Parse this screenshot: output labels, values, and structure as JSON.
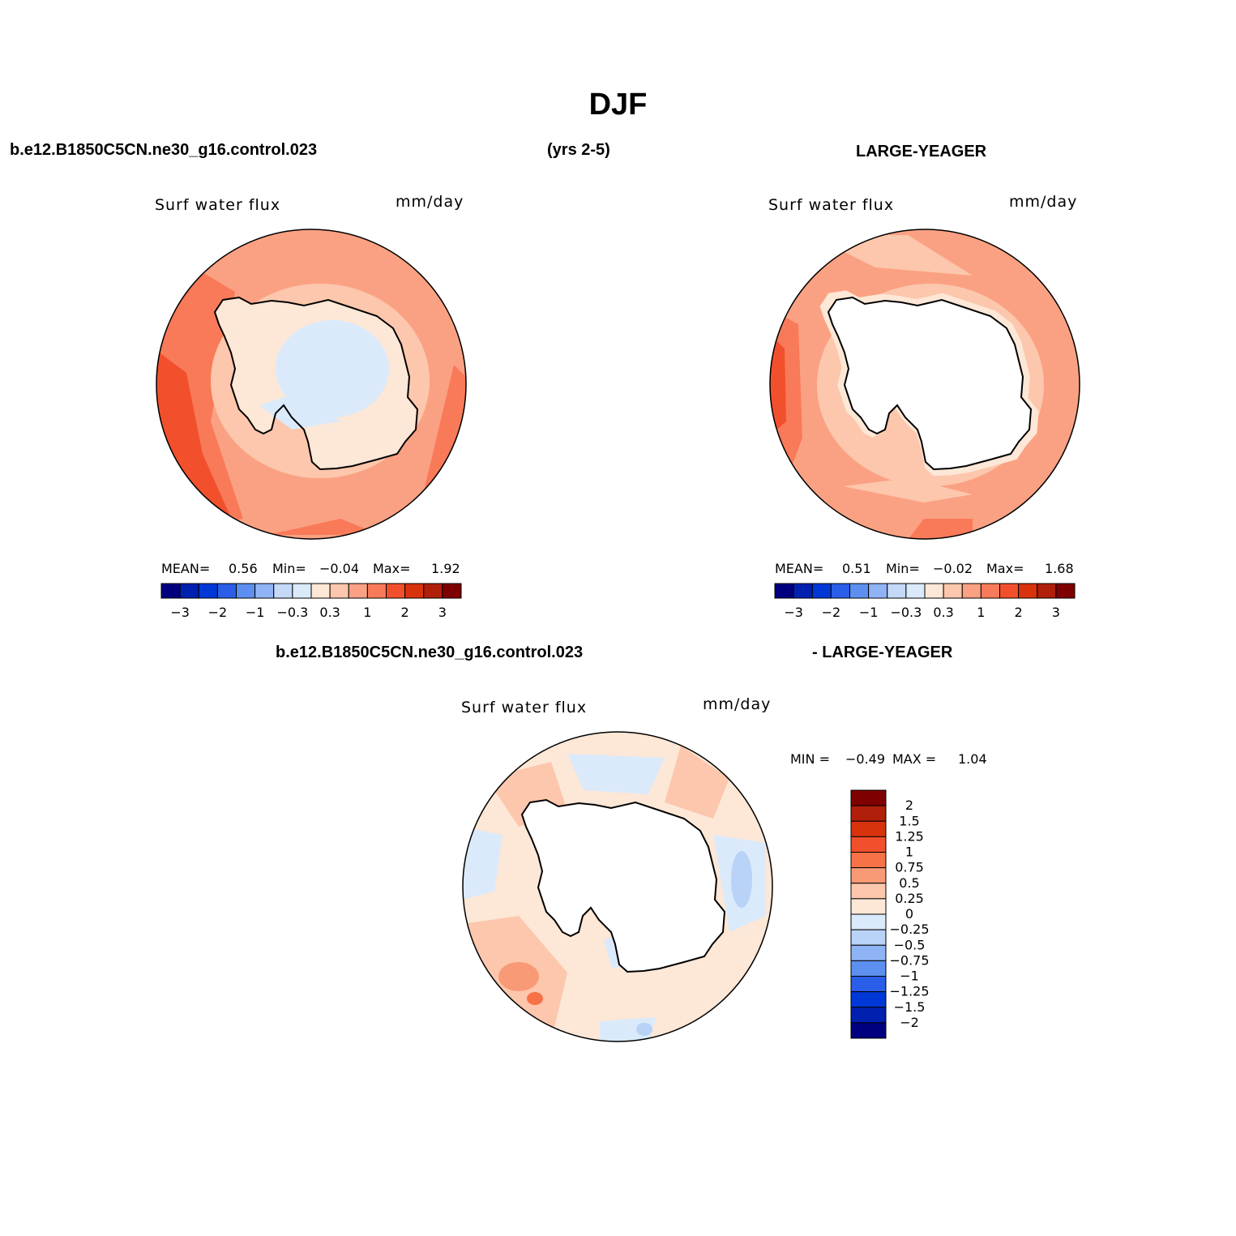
{
  "title": "DJF",
  "header": {
    "case_name": "b.e12.B1850C5CN.ne30_g16.control.023",
    "years": "(yrs 2-5)",
    "obs_name": "LARGE-YEAGER"
  },
  "panels": [
    {
      "id": "model",
      "variable": "Surf water flux",
      "units": "mm/day",
      "stats": {
        "mean_label": "MEAN=",
        "mean": "0.56",
        "min_label": "Min=",
        "min": "−0.04",
        "max_label": "Max=",
        "max": "1.92"
      }
    },
    {
      "id": "obs",
      "variable": "Surf water flux",
      "units": "mm/day",
      "stats": {
        "mean_label": "MEAN=",
        "mean": "0.51",
        "min_label": "Min=",
        "min": "−0.02",
        "max_label": "Max=",
        "max": "1.68"
      }
    },
    {
      "id": "diff",
      "variable": "Surf water flux",
      "units": "mm/day",
      "stats": {
        "min_label": "MIN =",
        "min": "−0.49",
        "max_label": "MAX =",
        "max": "1.04"
      }
    }
  ],
  "diff_header": {
    "left": "b.e12.B1850C5CN.ne30_g16.control.023",
    "right": "- LARGE-YEAGER"
  },
  "colorbar_horizontal": {
    "colors": [
      "#00007f",
      "#0020b0",
      "#0038d8",
      "#2a5ee8",
      "#5c8ff0",
      "#8fb4f5",
      "#c4d9f8",
      "#dbeafb",
      "#fde7d6",
      "#fcc7ac",
      "#fba183",
      "#f97a58",
      "#f2502c",
      "#d9330e",
      "#b01f0a",
      "#7f0000"
    ],
    "tick_labels": [
      "−3",
      "−2",
      "−1",
      "−0.3",
      "0.3",
      "1",
      "2",
      "3"
    ]
  },
  "colorbar_vertical": {
    "colors": [
      "#7f0000",
      "#b01f0a",
      "#d9330e",
      "#f2502c",
      "#f77246",
      "#f99a76",
      "#fcc7ac",
      "#fde7d6",
      "#dbeafb",
      "#b9d2f7",
      "#8fb4f5",
      "#5c8ff0",
      "#2a5ee8",
      "#0038d8",
      "#0020b0",
      "#00007f"
    ],
    "tick_labels": [
      "2",
      "1.5",
      "1.25",
      "1",
      "0.75",
      "0.5",
      "0.25",
      "0",
      "−0.25",
      "−0.5",
      "−0.75",
      "−1",
      "−1.25",
      "−1.5",
      "−2"
    ]
  },
  "colors": {
    "coast": "#000000",
    "land": "#ffffff"
  }
}
